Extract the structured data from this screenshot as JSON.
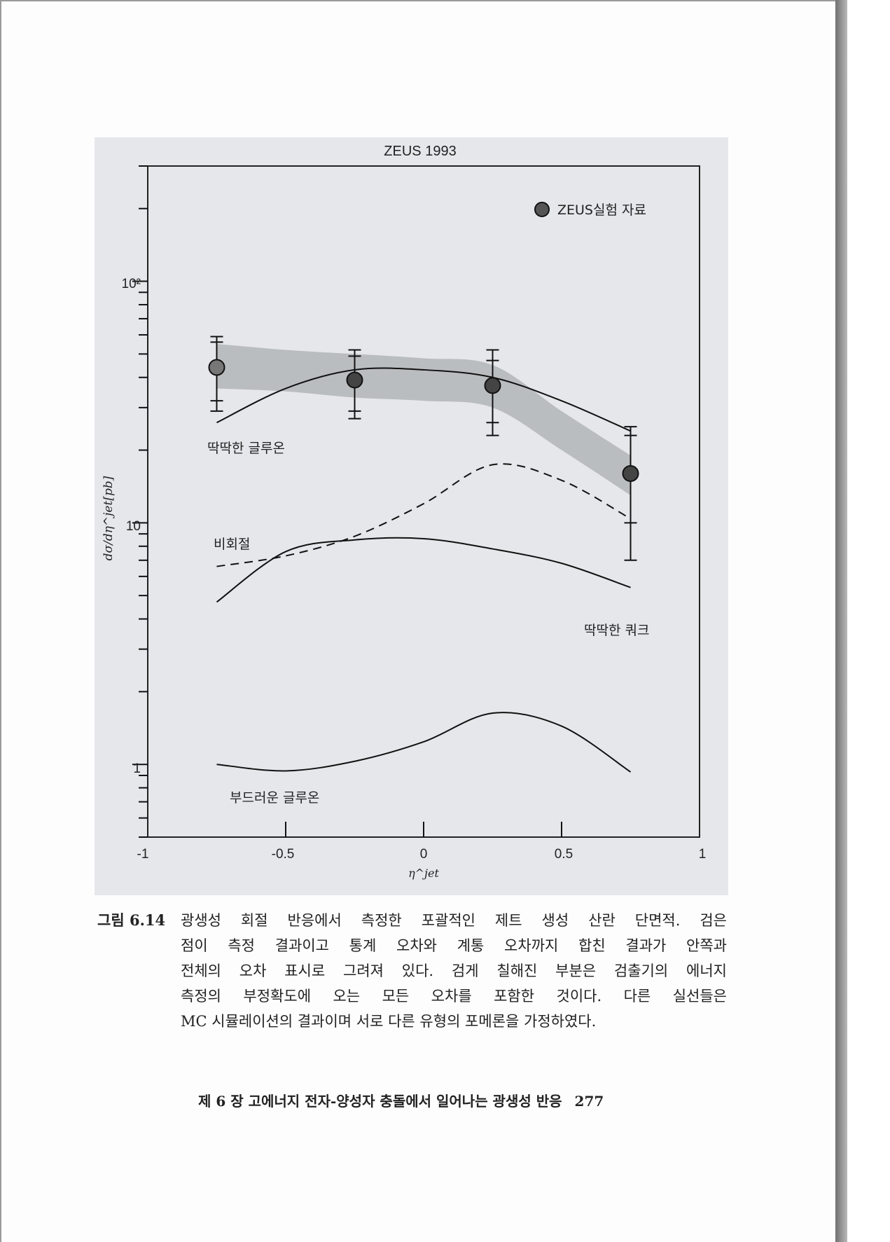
{
  "chart_data": {
    "type": "line",
    "title": "ZEUS 1993",
    "xlabel": "η^jet",
    "ylabel": "dσ/dη^jet[pb]",
    "xlim": [
      -1,
      1
    ],
    "ylim": [
      0.5,
      300
    ],
    "y_scale": "log",
    "grid": false,
    "x_ticks": [
      "-1",
      "-0.5",
      "0",
      "0.5",
      "1"
    ],
    "x_tick_values": [
      -1,
      -0.5,
      0,
      0.5,
      1
    ],
    "y_ticks": [
      "1",
      "10",
      "10²"
    ],
    "y_tick_values": [
      1,
      10,
      100
    ],
    "legend": {
      "position": "top-right",
      "entries": [
        "ZEUS실험 자료"
      ]
    },
    "data_points": {
      "name": "ZEUS실험 자료",
      "x": [
        -0.75,
        -0.25,
        0.25,
        0.75
      ],
      "y": [
        44,
        39,
        37,
        16
      ],
      "stat_err_low": [
        32,
        29,
        26,
        10
      ],
      "stat_err_high": [
        56,
        49,
        47,
        23
      ],
      "total_err_low": [
        29,
        27,
        23,
        7
      ],
      "total_err_high": [
        59,
        52,
        52,
        25
      ],
      "color": "#555555"
    },
    "band": {
      "x": [
        -0.75,
        -0.5,
        -0.25,
        0,
        0.25,
        0.5,
        0.75
      ],
      "upper": [
        55,
        52,
        50,
        48,
        45,
        29,
        19
      ],
      "lower": [
        36,
        35,
        33,
        32,
        30,
        20,
        13
      ],
      "color": "#b3b5b8"
    },
    "curves": [
      {
        "label": "딱딱한 글루온",
        "style": "solid",
        "x": [
          -0.75,
          -0.5,
          -0.25,
          0,
          0.25,
          0.5,
          0.75
        ],
        "y": [
          26,
          36,
          43,
          43,
          40,
          32,
          24
        ]
      },
      {
        "label": "비회절",
        "style": "dashed",
        "x": [
          -0.75,
          -0.5,
          -0.25,
          0,
          0.25,
          0.5,
          0.75
        ],
        "y": [
          6.6,
          7.3,
          8.8,
          12,
          17.4,
          15,
          10.4
        ]
      },
      {
        "label": "딱딱한 쿼크",
        "style": "solid",
        "x": [
          -0.75,
          -0.5,
          -0.25,
          0,
          0.25,
          0.5,
          0.75
        ],
        "y": [
          4.7,
          7.6,
          8.5,
          8.6,
          7.8,
          6.8,
          5.4
        ]
      },
      {
        "label": "부드러운 글루온",
        "style": "solid",
        "x": [
          -0.75,
          -0.5,
          -0.25,
          0,
          0.25,
          0.5,
          0.75
        ],
        "y": [
          1.0,
          0.94,
          1.03,
          1.24,
          1.63,
          1.44,
          0.93
        ]
      }
    ]
  },
  "caption": {
    "number": "그림 6.14",
    "lines": [
      "광생성 회절 반응에서 측정한 포괄적인 제트 생성 산란 단면적. 검은",
      "점이 측정 결과이고 통계 오차와 계통 오차까지 합친 결과가 안쪽과",
      "전체의 오차 표시로 그려져 있다. 검게 칠해진 부분은 검출기의 에너지",
      "측정의 부정확도에 오는 모든 오차를 포함한 것이다. 다른 실선들은",
      "MC 시뮬레이션의 결과이며 서로 다른 유형의 포메론을 가정하였다."
    ]
  },
  "footer": {
    "chapter": "제 6 장  고에너지 전자-양성자 충돌에서 일어나는 광생성 반응",
    "page_number": "277"
  }
}
